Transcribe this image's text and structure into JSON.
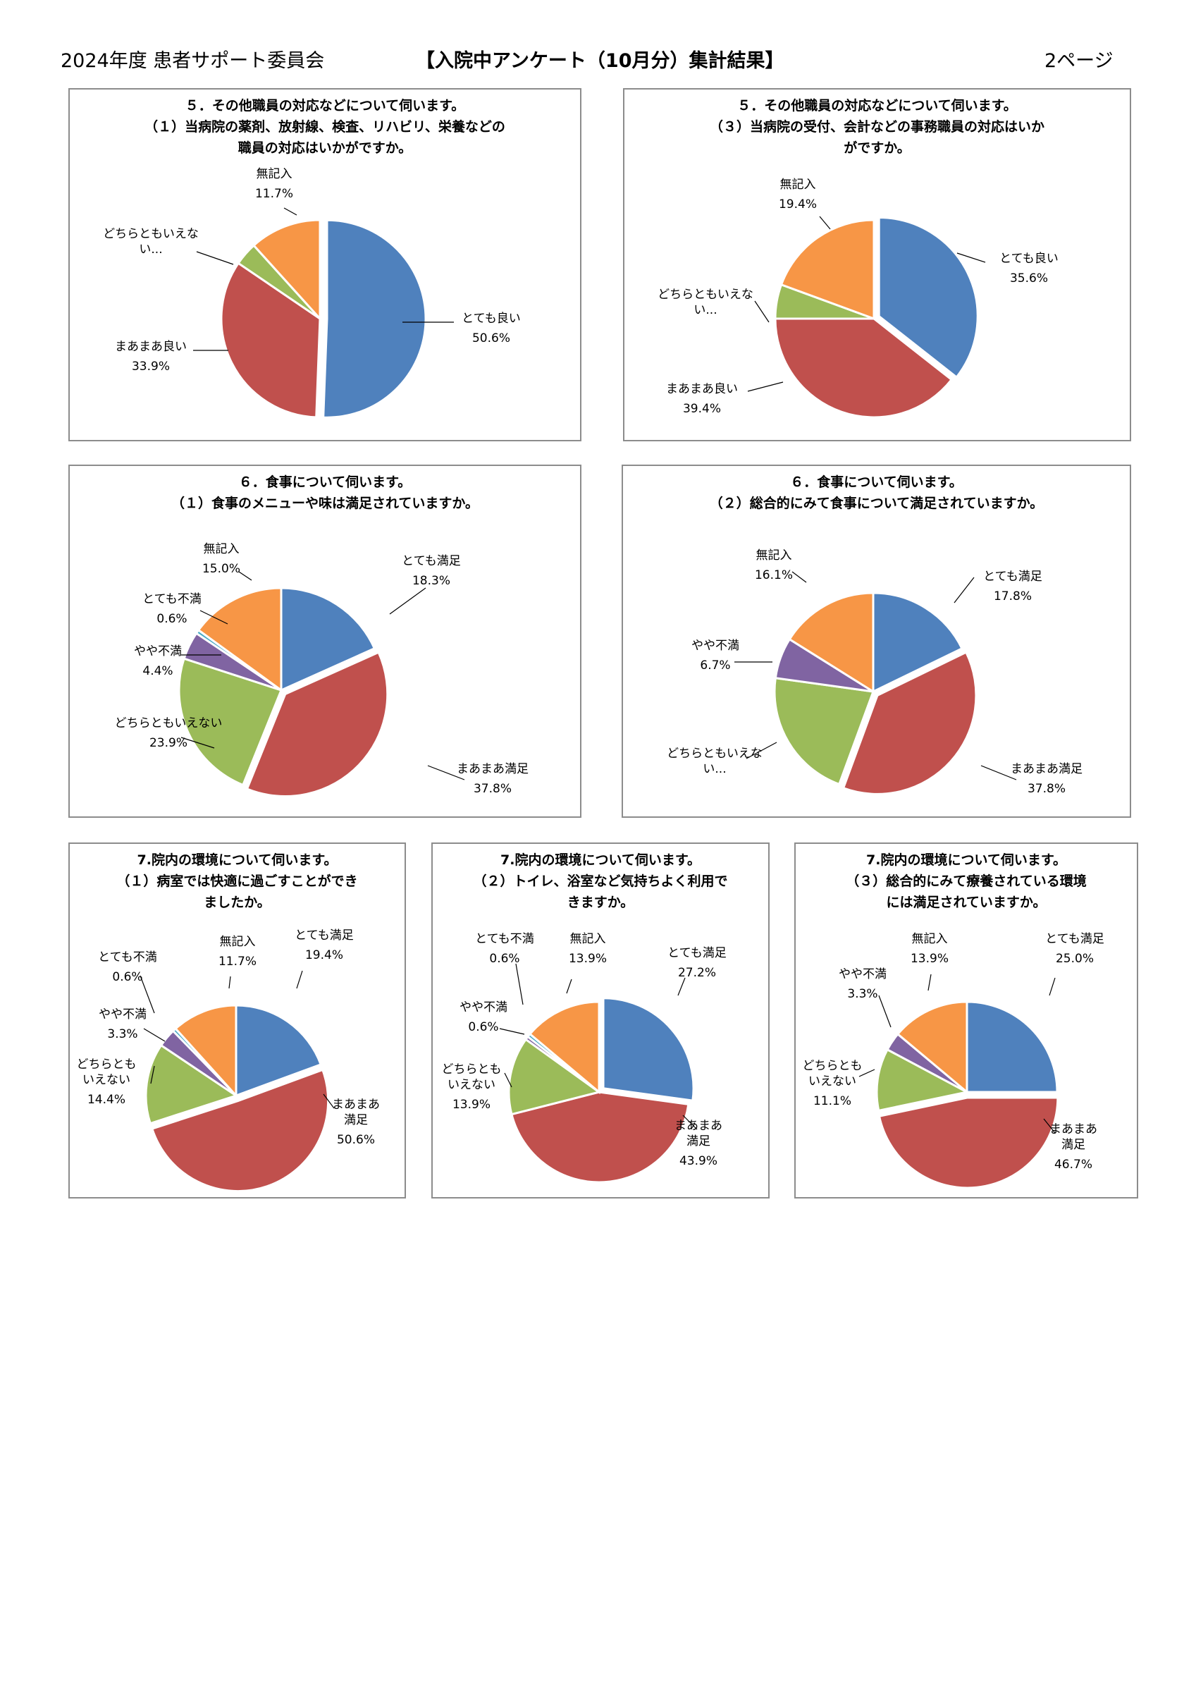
{
  "header": {
    "left": "2024年度 患者サポート委員会",
    "center": "【入院中アンケート（10月分）集計結果】",
    "page": "2ページ"
  },
  "colors": {
    "blue": "#4F81BD",
    "red": "#C0504D",
    "green": "#9BBB59",
    "purple": "#8064A2",
    "cyan": "#4BACC6",
    "orange": "#F79646",
    "frame": "#8c8c8c"
  },
  "chart_data": [
    {
      "type": "pie",
      "title_lines": [
        "５．その他職員の対応などについて伺います。",
        "（１）当病院の薬剤、放射線、検査、リハビリ、栄養などの",
        "職員の対応はいかがですか。"
      ],
      "slices": [
        {
          "label_lines": [
            "とても良い"
          ],
          "value_text": "50.6%",
          "value": 50.6,
          "color": "blue"
        },
        {
          "label_lines": [
            "まあまあ良い"
          ],
          "value_text": "33.9%",
          "value": 33.9,
          "color": "red"
        },
        {
          "label_lines": [
            "どちらともいえな",
            "い..."
          ],
          "value_text": "",
          "value": 3.8,
          "color": "green"
        },
        {
          "label_lines": [
            "無記入"
          ],
          "value_text": "11.7%",
          "value": 11.7,
          "color": "orange"
        }
      ]
    },
    {
      "type": "pie",
      "title_lines": [
        "５．その他職員の対応などについて伺います。",
        "（３）当病院の受付、会計などの事務職員の対応はいか",
        "がですか。"
      ],
      "slices": [
        {
          "label_lines": [
            "とても良い"
          ],
          "value_text": "35.6%",
          "value": 35.6,
          "color": "blue"
        },
        {
          "label_lines": [
            "まあまあ良い"
          ],
          "value_text": "39.4%",
          "value": 39.4,
          "color": "red"
        },
        {
          "label_lines": [
            "どちらともいえな",
            "い..."
          ],
          "value_text": "",
          "value": 5.6,
          "color": "green"
        },
        {
          "label_lines": [
            "無記入"
          ],
          "value_text": "19.4%",
          "value": 19.4,
          "color": "orange"
        }
      ]
    },
    {
      "type": "pie",
      "title_lines": [
        "６．食事について伺います。",
        "（１）食事のメニューや味は満足されていますか。"
      ],
      "slices": [
        {
          "label_lines": [
            "とても満足"
          ],
          "value_text": "18.3%",
          "value": 18.3,
          "color": "blue"
        },
        {
          "label_lines": [
            "まあまあ満足"
          ],
          "value_text": "37.8%",
          "value": 37.8,
          "color": "red"
        },
        {
          "label_lines": [
            "どちらともいえない"
          ],
          "value_text": "23.9%",
          "value": 23.9,
          "color": "green"
        },
        {
          "label_lines": [
            "やや不満"
          ],
          "value_text": "4.4%",
          "value": 4.4,
          "color": "purple"
        },
        {
          "label_lines": [
            "とても不満"
          ],
          "value_text": "0.6%",
          "value": 0.6,
          "color": "cyan"
        },
        {
          "label_lines": [
            "無記入"
          ],
          "value_text": "15.0%",
          "value": 15.0,
          "color": "orange"
        }
      ]
    },
    {
      "type": "pie",
      "title_lines": [
        "６．食事について伺います。",
        "（２）総合的にみて食事について満足されていますか。"
      ],
      "slices": [
        {
          "label_lines": [
            "とても満足"
          ],
          "value_text": "17.8%",
          "value": 17.8,
          "color": "blue"
        },
        {
          "label_lines": [
            "まあまあ満足"
          ],
          "value_text": "37.8%",
          "value": 37.8,
          "color": "red"
        },
        {
          "label_lines": [
            "どちらともいえな",
            "い..."
          ],
          "value_text": "",
          "value": 21.6,
          "color": "green"
        },
        {
          "label_lines": [
            "やや不満"
          ],
          "value_text": "6.7%",
          "value": 6.7,
          "color": "purple"
        },
        {
          "label_lines": [
            "無記入"
          ],
          "value_text": "16.1%",
          "value": 16.1,
          "color": "orange"
        }
      ]
    },
    {
      "type": "pie",
      "title_lines": [
        "7.院内の環境について伺います。",
        "（１）病室では快適に過ごすことができ",
        "ましたか。"
      ],
      "slices": [
        {
          "label_lines": [
            "とても満足"
          ],
          "value_text": "19.4%",
          "value": 19.4,
          "color": "blue"
        },
        {
          "label_lines": [
            "まあまあ",
            "満足"
          ],
          "value_text": "50.6%",
          "value": 50.6,
          "color": "red"
        },
        {
          "label_lines": [
            "どちらとも",
            "いえない"
          ],
          "value_text": "14.4%",
          "value": 14.4,
          "color": "green"
        },
        {
          "label_lines": [
            "やや不満"
          ],
          "value_text": "3.3%",
          "value": 3.3,
          "color": "purple"
        },
        {
          "label_lines": [
            "とても不満"
          ],
          "value_text": "0.6%",
          "value": 0.6,
          "color": "cyan"
        },
        {
          "label_lines": [
            "無記入"
          ],
          "value_text": "11.7%",
          "value": 11.7,
          "color": "orange"
        }
      ]
    },
    {
      "type": "pie",
      "title_lines": [
        "7.院内の環境について伺います。",
        "（２）トイレ、浴室など気持ちよく利用で",
        "きますか。"
      ],
      "slices": [
        {
          "label_lines": [
            "とても満足"
          ],
          "value_text": "27.2%",
          "value": 27.2,
          "color": "blue"
        },
        {
          "label_lines": [
            "まあまあ",
            "満足"
          ],
          "value_text": "43.9%",
          "value": 43.9,
          "color": "red"
        },
        {
          "label_lines": [
            "どちらとも",
            "いえない"
          ],
          "value_text": "13.9%",
          "value": 13.9,
          "color": "green"
        },
        {
          "label_lines": [
            "やや不満"
          ],
          "value_text": "0.6%",
          "value": 0.6,
          "color": "purple"
        },
        {
          "label_lines": [
            "とても不満"
          ],
          "value_text": "0.6%",
          "value": 0.6,
          "color": "cyan"
        },
        {
          "label_lines": [
            "無記入"
          ],
          "value_text": "13.9%",
          "value": 13.9,
          "color": "orange"
        }
      ]
    },
    {
      "type": "pie",
      "title_lines": [
        "7.院内の環境について伺います。",
        "（３）総合的にみて療養されている環境",
        "には満足されていますか。"
      ],
      "slices": [
        {
          "label_lines": [
            "とても満足"
          ],
          "value_text": "25.0%",
          "value": 25.0,
          "color": "blue"
        },
        {
          "label_lines": [
            "まあまあ",
            "満足"
          ],
          "value_text": "46.7%",
          "value": 46.7,
          "color": "red"
        },
        {
          "label_lines": [
            "どちらとも",
            "いえない"
          ],
          "value_text": "11.1%",
          "value": 11.1,
          "color": "green"
        },
        {
          "label_lines": [
            "やや不満"
          ],
          "value_text": "3.3%",
          "value": 3.3,
          "color": "purple"
        },
        {
          "label_lines": [
            "無記入"
          ],
          "value_text": "13.9%",
          "value": 13.9,
          "color": "orange"
        }
      ]
    }
  ]
}
